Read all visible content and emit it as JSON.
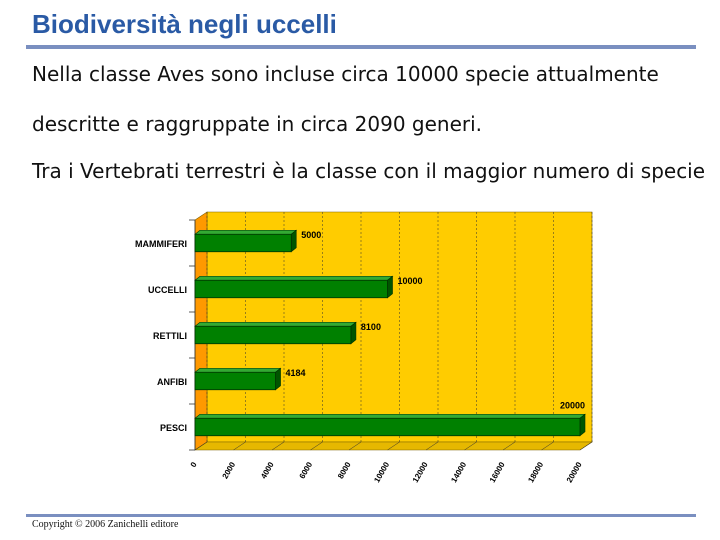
{
  "slide": {
    "title": "Biodiversità negli uccelli",
    "paragraphs": [
      "Nella classe Aves sono incluse circa 10000 specie attualmente",
      "descritte e raggruppate in circa 2090 generi.",
      "Tra i Vertebrati terrestri è la classe con il maggior numero di specie"
    ],
    "copyright": "Copyright © 2006 Zanichelli editore"
  },
  "colors": {
    "title": "#2a5aa5",
    "plot_back": "#ffcc00",
    "plot_side": "#ff9900",
    "plot_floor": "#e6b800",
    "bar_front": "#008000",
    "bar_top": "#33aa33",
    "bar_side": "#005500"
  },
  "chart_data": {
    "type": "bar",
    "orientation": "horizontal",
    "style": "3d",
    "categories": [
      "MAMMIFERI",
      "UCCELLI",
      "RETTILI",
      "ANFIBI",
      "PESCI"
    ],
    "values": [
      5000,
      10000,
      8100,
      4184,
      20000
    ],
    "data_labels": [
      "5000",
      "10000",
      "8100",
      "4184",
      "20000"
    ],
    "xlim": [
      0,
      20000
    ],
    "xticks": [
      0,
      2000,
      4000,
      6000,
      8000,
      10000,
      12000,
      14000,
      16000,
      18000,
      20000
    ],
    "grid": true,
    "legend": "none",
    "title": "",
    "xlabel": "",
    "ylabel": ""
  }
}
